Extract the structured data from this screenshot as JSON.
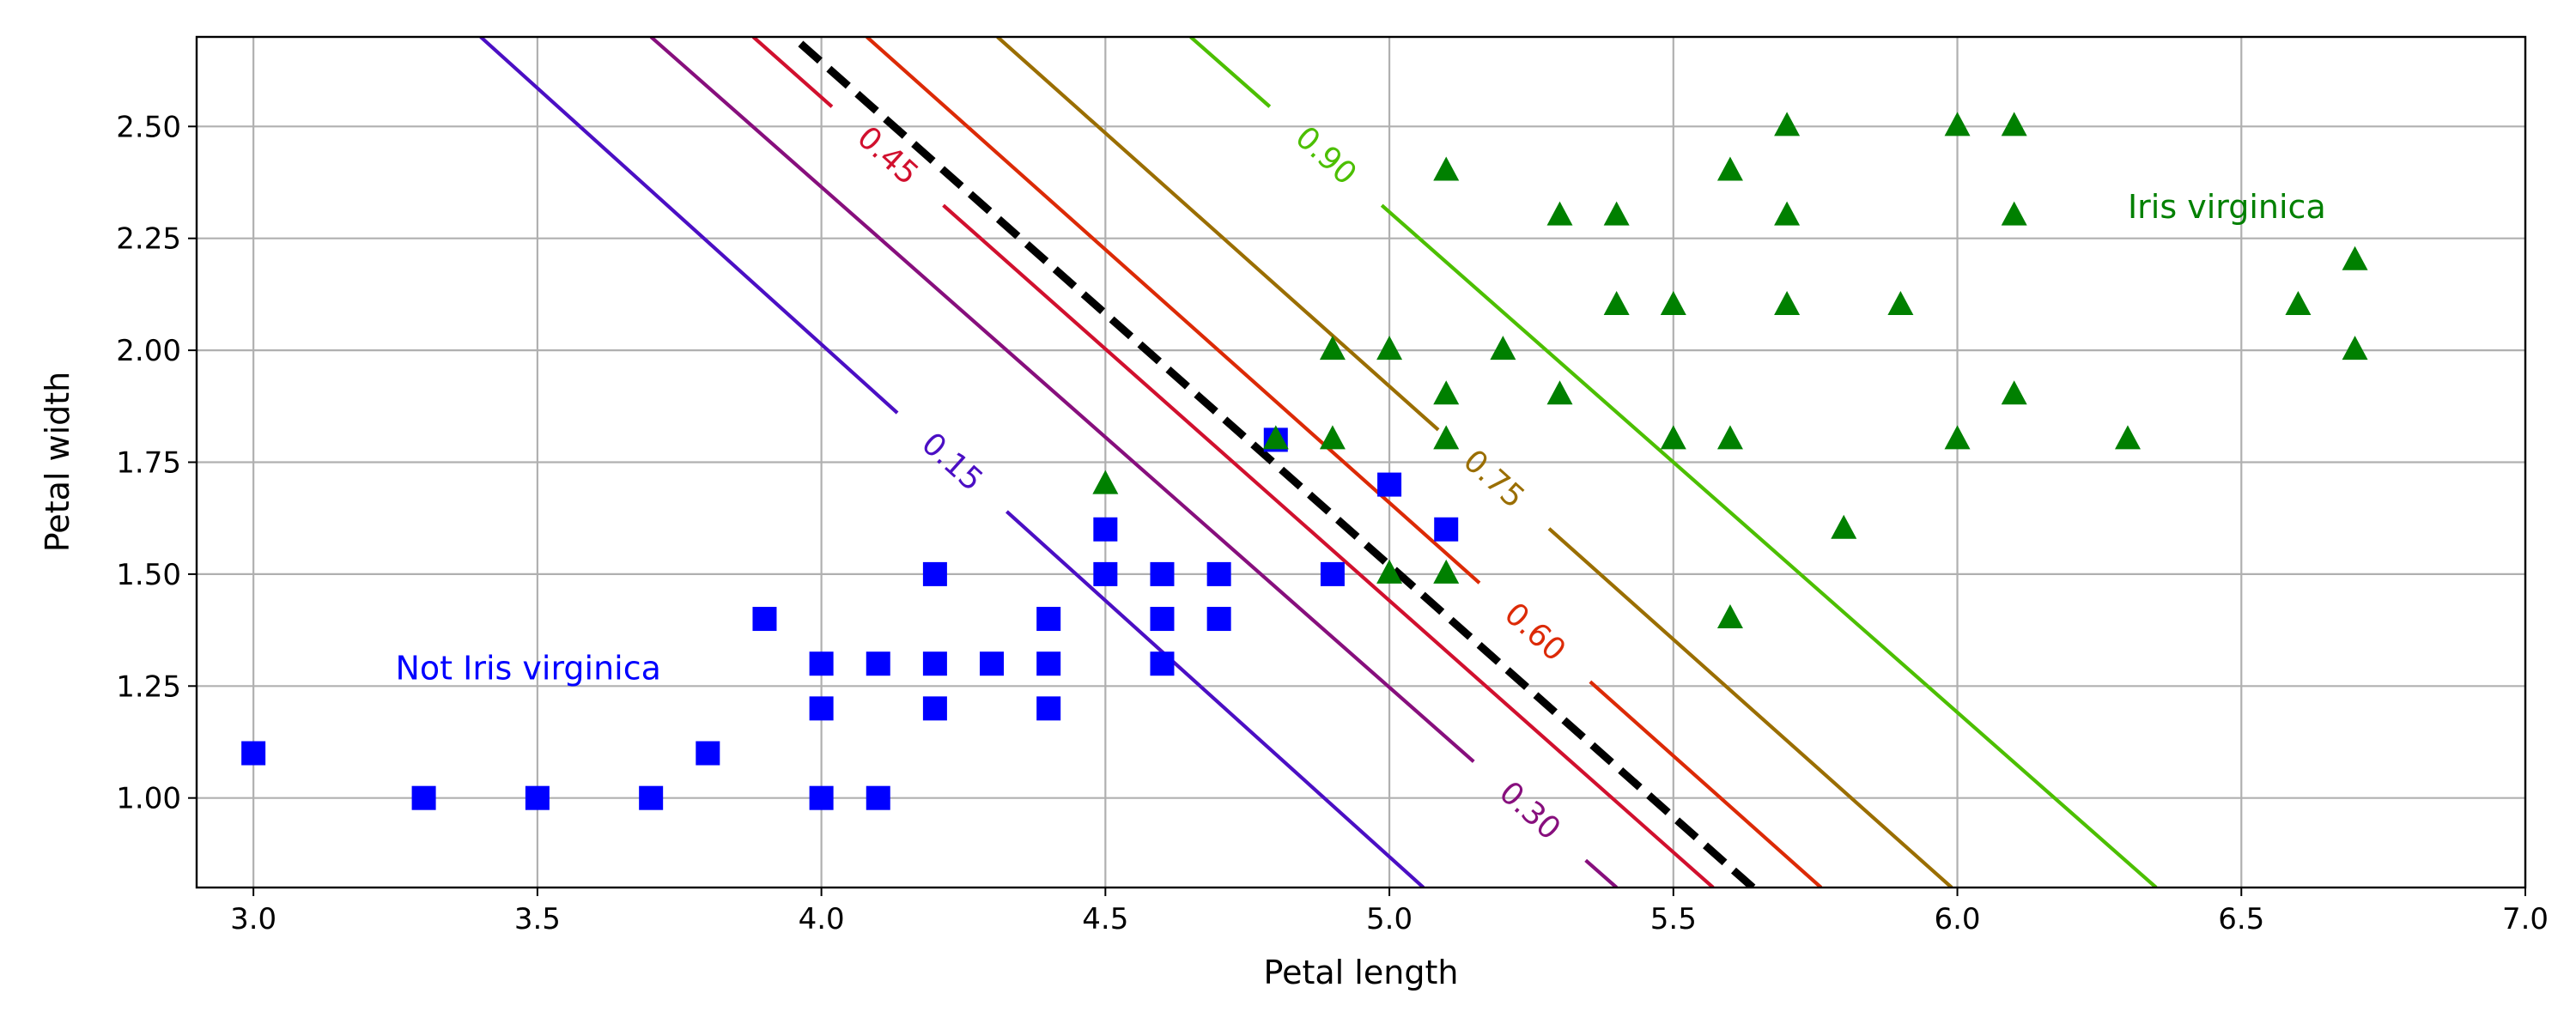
{
  "chart_data": {
    "type": "scatter",
    "xlabel": "Petal length",
    "ylabel": "Petal width",
    "xlim": [
      2.9,
      7.0
    ],
    "ylim": [
      0.8,
      2.7
    ],
    "grid": true,
    "x_ticks": [
      3.0,
      3.5,
      4.0,
      4.5,
      5.0,
      5.5,
      6.0,
      6.5,
      7.0
    ],
    "x_tick_labels": [
      "3.0",
      "3.5",
      "4.0",
      "4.5",
      "5.0",
      "5.5",
      "6.0",
      "6.5",
      "7.0"
    ],
    "y_ticks": [
      1.0,
      1.25,
      1.5,
      1.75,
      2.0,
      2.25,
      2.5
    ],
    "y_tick_labels": [
      "1.00",
      "1.25",
      "1.50",
      "1.75",
      "2.00",
      "2.25",
      "2.50"
    ],
    "series": [
      {
        "marker": "square",
        "color": "#0000ff",
        "points": [
          [
            3.0,
            1.1
          ],
          [
            3.3,
            1.0
          ],
          [
            3.5,
            1.0
          ],
          [
            3.7,
            1.0
          ],
          [
            3.8,
            1.1
          ],
          [
            3.9,
            1.4
          ],
          [
            4.0,
            1.3
          ],
          [
            4.0,
            1.2
          ],
          [
            4.0,
            1.0
          ],
          [
            4.1,
            1.3
          ],
          [
            4.1,
            1.0
          ],
          [
            4.2,
            1.5
          ],
          [
            4.2,
            1.3
          ],
          [
            4.2,
            1.2
          ],
          [
            4.3,
            1.3
          ],
          [
            4.4,
            1.4
          ],
          [
            4.4,
            1.3
          ],
          [
            4.4,
            1.2
          ],
          [
            4.5,
            1.6
          ],
          [
            4.5,
            1.5
          ],
          [
            4.6,
            1.5
          ],
          [
            4.6,
            1.4
          ],
          [
            4.6,
            1.3
          ],
          [
            4.7,
            1.5
          ],
          [
            4.7,
            1.4
          ],
          [
            4.8,
            1.8
          ],
          [
            4.9,
            1.5
          ],
          [
            5.0,
            1.7
          ],
          [
            5.1,
            1.6
          ]
        ]
      },
      {
        "marker": "triangle",
        "color": "#008000",
        "points": [
          [
            4.5,
            1.7
          ],
          [
            4.8,
            1.8
          ],
          [
            4.9,
            2.0
          ],
          [
            4.9,
            1.8
          ],
          [
            5.0,
            2.0
          ],
          [
            5.0,
            1.5
          ],
          [
            5.1,
            2.4
          ],
          [
            5.1,
            1.9
          ],
          [
            5.1,
            1.8
          ],
          [
            5.1,
            1.5
          ],
          [
            5.2,
            2.0
          ],
          [
            5.3,
            2.3
          ],
          [
            5.3,
            1.9
          ],
          [
            5.4,
            2.3
          ],
          [
            5.4,
            2.1
          ],
          [
            5.5,
            2.1
          ],
          [
            5.5,
            1.8
          ],
          [
            5.6,
            2.4
          ],
          [
            5.6,
            1.8
          ],
          [
            5.6,
            1.4
          ],
          [
            5.7,
            2.5
          ],
          [
            5.7,
            2.3
          ],
          [
            5.7,
            2.1
          ],
          [
            5.8,
            1.6
          ],
          [
            5.9,
            2.1
          ],
          [
            6.0,
            2.5
          ],
          [
            6.0,
            1.8
          ],
          [
            6.1,
            2.5
          ],
          [
            6.1,
            2.3
          ],
          [
            6.1,
            1.9
          ],
          [
            6.3,
            1.8
          ],
          [
            6.6,
            2.1
          ],
          [
            6.7,
            2.2
          ],
          [
            6.7,
            2.0
          ]
        ]
      }
    ],
    "contours": [
      {
        "label": "0.15",
        "color": "#4b0fc4",
        "x_at_y_0_8": 5.06,
        "x_at_y_2_7": 3.4
      },
      {
        "label": "0.30",
        "color": "#870f7d",
        "x_at_y_0_8": 5.4,
        "x_at_y_2_7": 3.7
      },
      {
        "label": "0.45",
        "color": "#d1102e",
        "x_at_y_0_8": 5.57,
        "x_at_y_2_7": 3.88
      },
      {
        "label": "0.60",
        "color": "#dc2a06",
        "x_at_y_0_8": 5.76,
        "x_at_y_2_7": 4.08
      },
      {
        "label": "0.75",
        "color": "#9a6e00",
        "x_at_y_0_8": 5.99,
        "x_at_y_2_7": 4.31
      },
      {
        "label": "0.90",
        "color": "#4cbf00",
        "x_at_y_0_8": 6.35,
        "x_at_y_2_7": 4.65
      }
    ],
    "decision_boundary": {
      "x_at_y_0_8": 5.64,
      "x_at_y_2_7": 3.95,
      "style": "dashed",
      "color": "#000000"
    },
    "annotations": [
      {
        "text": "Not Iris virginica",
        "x": 3.25,
        "y": 1.29,
        "color": "#0000ff"
      },
      {
        "text": "Iris virginica",
        "x": 6.3,
        "y": 2.32,
        "color": "#008000"
      }
    ]
  }
}
